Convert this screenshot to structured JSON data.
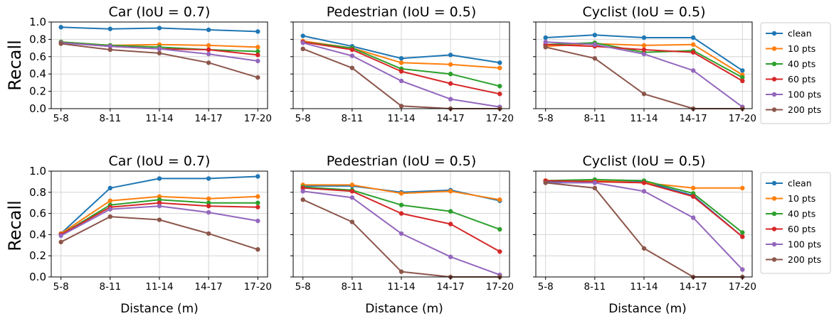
{
  "figure": {
    "ylabel": "Recall",
    "xlabel": "Distance (m)",
    "x_ticks": [
      "5-8",
      "8-11",
      "11-14",
      "14-17",
      "17-20"
    ],
    "y_ticks": [
      "0.0",
      "0.2",
      "0.4",
      "0.6",
      "0.8",
      "1.0"
    ],
    "legend_labels": [
      "clean",
      "10 pts",
      "40 pts",
      "60 pts",
      "100 pts",
      "200 pts"
    ],
    "colors": {
      "clean": "#1f77b4",
      "10 pts": "#ff7f0e",
      "40 pts": "#2ca02c",
      "60 pts": "#d62728",
      "100 pts": "#9467bd",
      "200 pts": "#8c564b"
    }
  },
  "chart_data": [
    {
      "type": "line",
      "row": 0,
      "col": 0,
      "title": "Car (IoU = 0.7)",
      "categories": [
        "5-8",
        "8-11",
        "11-14",
        "14-17",
        "17-20"
      ],
      "ylim": [
        0,
        1
      ],
      "grid": true,
      "series": [
        {
          "name": "clean",
          "values": [
            0.94,
            0.92,
            0.93,
            0.91,
            0.89
          ]
        },
        {
          "name": "10 pts",
          "values": [
            0.77,
            0.73,
            0.74,
            0.73,
            0.71
          ]
        },
        {
          "name": "40 pts",
          "values": [
            0.77,
            0.73,
            0.71,
            0.68,
            0.66
          ]
        },
        {
          "name": "60 pts",
          "values": [
            0.76,
            0.72,
            0.69,
            0.68,
            0.62
          ]
        },
        {
          "name": "100 pts",
          "values": [
            0.76,
            0.72,
            0.69,
            0.63,
            0.55
          ]
        },
        {
          "name": "200 pts",
          "values": [
            0.75,
            0.68,
            0.64,
            0.53,
            0.36
          ]
        }
      ]
    },
    {
      "type": "line",
      "row": 0,
      "col": 1,
      "title": "Pedestrian (IoU = 0.5)",
      "categories": [
        "5-8",
        "8-11",
        "11-14",
        "14-17",
        "17-20"
      ],
      "ylim": [
        0,
        1
      ],
      "grid": true,
      "series": [
        {
          "name": "clean",
          "values": [
            0.84,
            0.72,
            0.58,
            0.62,
            0.53
          ]
        },
        {
          "name": "10 pts",
          "values": [
            0.78,
            0.7,
            0.53,
            0.51,
            0.47
          ]
        },
        {
          "name": "40 pts",
          "values": [
            0.77,
            0.7,
            0.46,
            0.4,
            0.26
          ]
        },
        {
          "name": "60 pts",
          "values": [
            0.77,
            0.68,
            0.43,
            0.29,
            0.17
          ]
        },
        {
          "name": "100 pts",
          "values": [
            0.76,
            0.61,
            0.32,
            0.11,
            0.02
          ]
        },
        {
          "name": "200 pts",
          "values": [
            0.69,
            0.47,
            0.03,
            0.0,
            0.0
          ]
        }
      ]
    },
    {
      "type": "line",
      "row": 0,
      "col": 2,
      "title": "Cyclist (IoU = 0.5)",
      "categories": [
        "5-8",
        "8-11",
        "11-14",
        "14-17",
        "17-20"
      ],
      "ylim": [
        0,
        1
      ],
      "grid": true,
      "series": [
        {
          "name": "clean",
          "values": [
            0.82,
            0.85,
            0.82,
            0.82,
            0.44
          ]
        },
        {
          "name": "10 pts",
          "values": [
            0.72,
            0.75,
            0.73,
            0.74,
            0.39
          ]
        },
        {
          "name": "40 pts",
          "values": [
            0.74,
            0.76,
            0.65,
            0.67,
            0.36
          ]
        },
        {
          "name": "60 pts",
          "values": [
            0.74,
            0.72,
            0.68,
            0.65,
            0.32
          ]
        },
        {
          "name": "100 pts",
          "values": [
            0.77,
            0.74,
            0.63,
            0.44,
            0.02
          ]
        },
        {
          "name": "200 pts",
          "values": [
            0.71,
            0.58,
            0.17,
            0.0,
            0.0
          ]
        }
      ]
    },
    {
      "type": "line",
      "row": 1,
      "col": 0,
      "title": "Car (IoU = 0.7)",
      "categories": [
        "5-8",
        "8-11",
        "11-14",
        "14-17",
        "17-20"
      ],
      "ylim": [
        0,
        1
      ],
      "grid": true,
      "series": [
        {
          "name": "clean",
          "values": [
            0.41,
            0.84,
            0.93,
            0.93,
            0.95
          ]
        },
        {
          "name": "10 pts",
          "values": [
            0.41,
            0.72,
            0.76,
            0.74,
            0.76
          ]
        },
        {
          "name": "40 pts",
          "values": [
            0.4,
            0.68,
            0.73,
            0.7,
            0.7
          ]
        },
        {
          "name": "60 pts",
          "values": [
            0.4,
            0.66,
            0.7,
            0.67,
            0.66
          ]
        },
        {
          "name": "100 pts",
          "values": [
            0.39,
            0.64,
            0.67,
            0.61,
            0.53
          ]
        },
        {
          "name": "200 pts",
          "values": [
            0.33,
            0.57,
            0.54,
            0.41,
            0.26
          ]
        }
      ]
    },
    {
      "type": "line",
      "row": 1,
      "col": 1,
      "title": "Pedestrian (IoU = 0.5)",
      "categories": [
        "5-8",
        "8-11",
        "11-14",
        "14-17",
        "17-20"
      ],
      "ylim": [
        0,
        1
      ],
      "grid": true,
      "series": [
        {
          "name": "clean",
          "values": [
            0.86,
            0.86,
            0.8,
            0.82,
            0.72
          ]
        },
        {
          "name": "10 pts",
          "values": [
            0.87,
            0.87,
            0.79,
            0.81,
            0.73
          ]
        },
        {
          "name": "40 pts",
          "values": [
            0.85,
            0.82,
            0.68,
            0.62,
            0.45
          ]
        },
        {
          "name": "60 pts",
          "values": [
            0.84,
            0.81,
            0.6,
            0.5,
            0.24
          ]
        },
        {
          "name": "100 pts",
          "values": [
            0.81,
            0.75,
            0.41,
            0.19,
            0.02
          ]
        },
        {
          "name": "200 pts",
          "values": [
            0.73,
            0.52,
            0.05,
            0.0,
            0.0
          ]
        }
      ]
    },
    {
      "type": "line",
      "row": 1,
      "col": 2,
      "title": "Cyclist (IoU = 0.5)",
      "categories": [
        "5-8",
        "8-11",
        "11-14",
        "14-17",
        "17-20"
      ],
      "ylim": [
        0,
        1
      ],
      "grid": true,
      "series": [
        {
          "name": "clean",
          "values": [
            0.9,
            0.91,
            0.9,
            0.77,
            0.38
          ]
        },
        {
          "name": "10 pts",
          "values": [
            0.91,
            0.91,
            0.89,
            0.84,
            0.84
          ]
        },
        {
          "name": "40 pts",
          "values": [
            0.91,
            0.92,
            0.91,
            0.79,
            0.42
          ]
        },
        {
          "name": "60 pts",
          "values": [
            0.91,
            0.9,
            0.89,
            0.76,
            0.38
          ]
        },
        {
          "name": "100 pts",
          "values": [
            0.89,
            0.89,
            0.81,
            0.56,
            0.07
          ]
        },
        {
          "name": "200 pts",
          "values": [
            0.89,
            0.84,
            0.27,
            0.0,
            0.0
          ]
        }
      ]
    }
  ]
}
